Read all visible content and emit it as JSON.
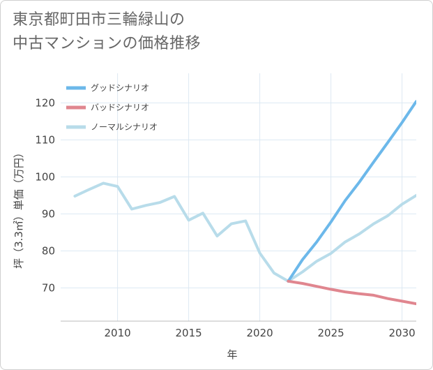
{
  "title_line1": "東京都町田市三輪緑山の",
  "title_line2": "中古マンションの価格推移",
  "chart_data": {
    "type": "line",
    "title": "東京都町田市三輪緑山の中古マンションの価格推移",
    "xlabel": "年",
    "ylabel": "坪（3.3㎡）単価（万円）",
    "xlim": [
      2006,
      2031
    ],
    "ylim": [
      61,
      128
    ],
    "xticks": [
      2010,
      2015,
      2020,
      2025,
      2030
    ],
    "yticks": [
      70,
      80,
      90,
      100,
      110,
      120
    ],
    "grid": true,
    "legend_position": "top-left",
    "series": [
      {
        "name": "グッドシナリオ",
        "color": "#6cb8ea",
        "x": [
          2022,
          2023,
          2024,
          2025,
          2026,
          2027,
          2028,
          2029,
          2030,
          2031
        ],
        "values": [
          71.8,
          77.6,
          82.4,
          87.8,
          93.6,
          98.6,
          104.0,
          109.3,
          114.7,
          120.4
        ]
      },
      {
        "name": "バッドシナリオ",
        "color": "#e0868f",
        "x": [
          2022,
          2023,
          2024,
          2025,
          2026,
          2027,
          2028,
          2029,
          2030,
          2031
        ],
        "values": [
          71.8,
          71.2,
          70.4,
          69.6,
          68.9,
          68.4,
          68.0,
          67.1,
          66.4,
          65.7
        ]
      },
      {
        "name": "ノーマルシナリオ",
        "color": "#b8dcea",
        "x": [
          2007,
          2008,
          2009,
          2010,
          2011,
          2012,
          2013,
          2014,
          2015,
          2016,
          2017,
          2018,
          2019,
          2020,
          2021,
          2022,
          2023,
          2024,
          2025,
          2026,
          2027,
          2028,
          2029,
          2030,
          2031
        ],
        "values": [
          94.8,
          96.6,
          98.3,
          97.4,
          91.3,
          92.3,
          93.1,
          94.7,
          88.3,
          90.2,
          84.0,
          87.3,
          88.1,
          79.4,
          74.0,
          71.8,
          74.3,
          77.2,
          79.3,
          82.4,
          84.6,
          87.3,
          89.5,
          92.6,
          95.0
        ]
      }
    ]
  }
}
